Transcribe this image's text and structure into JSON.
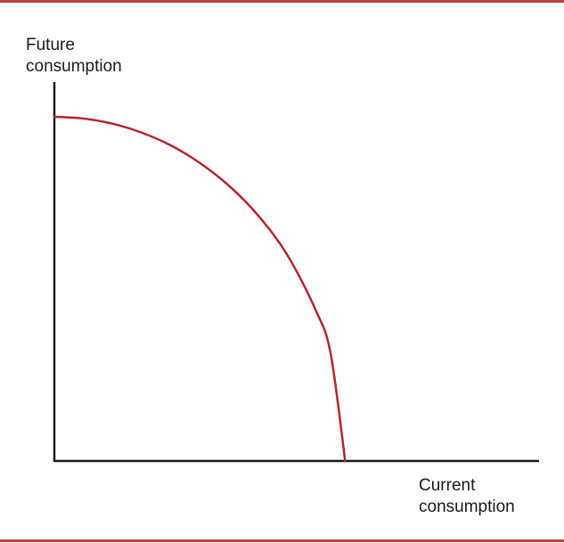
{
  "colors": {
    "rule": "#c0403c",
    "curve": "#b3262d",
    "axis": "#1a1a1a",
    "text": "#1a1a1a"
  },
  "chart_data": {
    "type": "line",
    "title": "",
    "xlabel_lines": [
      "Current",
      "consumption"
    ],
    "ylabel_lines": [
      "Future",
      "consumption"
    ],
    "grid": false,
    "xlim": [
      0,
      100
    ],
    "ylim": [
      0,
      100
    ],
    "series": [
      {
        "x": [
          0,
          10,
          20,
          30,
          40,
          50,
          60,
          70,
          80,
          90,
          95,
          100
        ],
        "y": [
          100,
          99.5,
          98,
          95.4,
          91.7,
          86.6,
          80,
          71.4,
          60,
          43.6,
          31.2,
          0
        ]
      }
    ],
    "curve_end_x_fraction_of_axis": 0.6
  }
}
